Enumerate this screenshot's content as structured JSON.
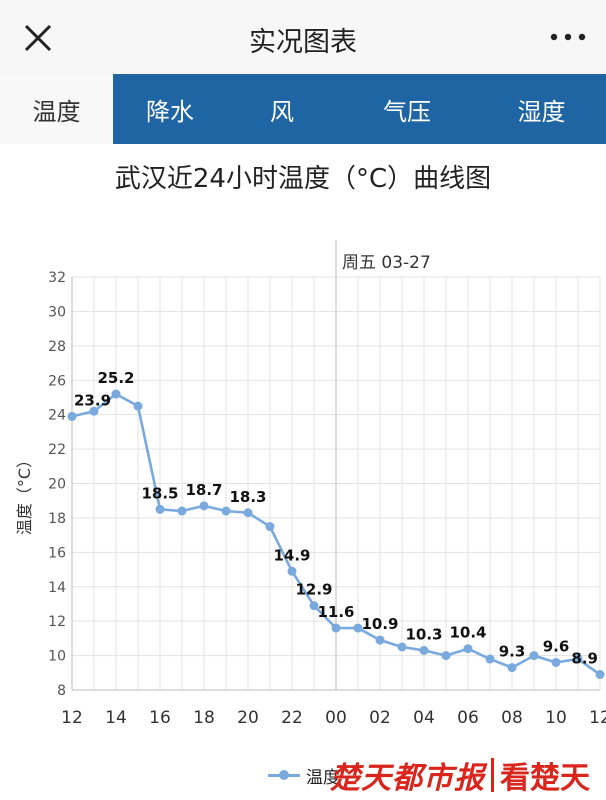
{
  "header": {
    "title": "实况图表",
    "close_icon": "close-icon",
    "more_icon": "more-dots-icon"
  },
  "tabs": [
    {
      "label": "温度",
      "active": true
    },
    {
      "label": "降水",
      "active": false
    },
    {
      "label": "风",
      "active": false
    },
    {
      "label": "气压",
      "active": false
    },
    {
      "label": "湿度",
      "active": false
    }
  ],
  "chart_title": "武汉近24小时温度（°C）曲线图",
  "chart_data": {
    "type": "line",
    "title": "武汉近24小时温度（°C）曲线图",
    "xlabel": "",
    "ylabel": "温度（°C）",
    "ylim": [
      8,
      32
    ],
    "yticks": [
      8,
      10,
      12,
      14,
      16,
      18,
      20,
      22,
      24,
      26,
      28,
      30,
      32
    ],
    "xtick_labels": [
      "12",
      "14",
      "16",
      "18",
      "20",
      "22",
      "00",
      "02",
      "04",
      "06",
      "08",
      "10",
      "12"
    ],
    "day_marker": {
      "label": "周五 03-27",
      "hour": 24
    },
    "grid": true,
    "legend": "bottom-center",
    "color": "#7aa9de",
    "series": [
      {
        "name": "温度",
        "hours": [
          12,
          13,
          14,
          15,
          16,
          17,
          18,
          19,
          20,
          21,
          22,
          23,
          24,
          25,
          26,
          27,
          28,
          29,
          30,
          31,
          32,
          33,
          34,
          35,
          36
        ],
        "values": [
          23.9,
          24.2,
          25.2,
          24.5,
          18.5,
          18.4,
          18.7,
          18.4,
          18.3,
          17.5,
          14.9,
          12.9,
          11.6,
          11.6,
          10.9,
          10.5,
          10.3,
          10.0,
          10.4,
          9.8,
          9.3,
          10.0,
          9.6,
          9.8,
          8.9
        ],
        "labels": [
          {
            "hour": 12,
            "text": "23.9"
          },
          {
            "hour": 14,
            "text": "25.2"
          },
          {
            "hour": 16,
            "text": "18.5"
          },
          {
            "hour": 18,
            "text": "18.7"
          },
          {
            "hour": 20,
            "text": "18.3"
          },
          {
            "hour": 22,
            "text": "14.9"
          },
          {
            "hour": 23,
            "text": "12.9"
          },
          {
            "hour": 24,
            "text": "11.6"
          },
          {
            "hour": 26,
            "text": "10.9"
          },
          {
            "hour": 28,
            "text": "10.3"
          },
          {
            "hour": 30,
            "text": "10.4"
          },
          {
            "hour": 32,
            "text": "9.3"
          },
          {
            "hour": 34,
            "text": "9.6"
          },
          {
            "hour": 36,
            "text": "8.9"
          }
        ]
      }
    ]
  },
  "legend_label": "温度",
  "watermark": {
    "left": "楚天都市报",
    "right": "看楚天"
  }
}
